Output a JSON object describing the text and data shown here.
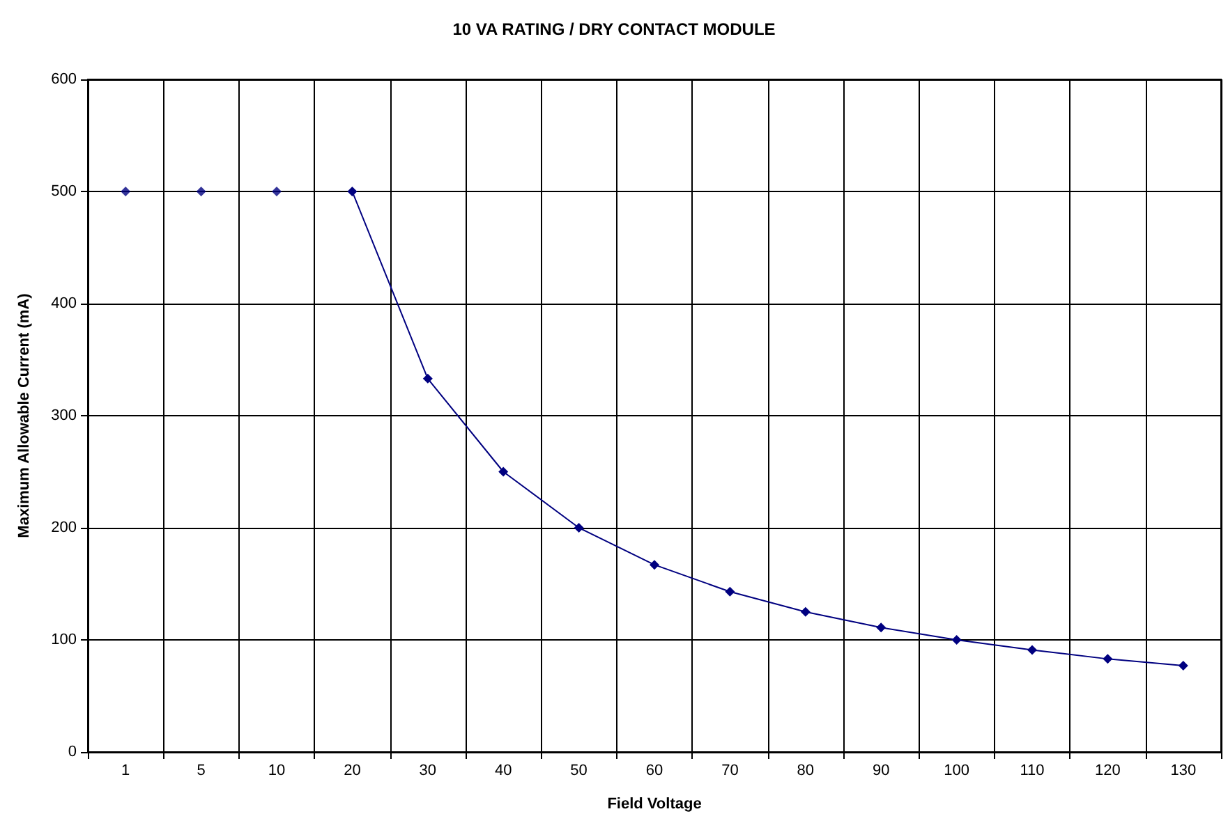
{
  "chart_data": {
    "type": "line",
    "title": "10 VA RATING / DRY CONTACT MODULE",
    "xlabel": "Field Voltage",
    "ylabel": "Maximum Allowable Current (mA)",
    "categories": [
      "1",
      "5",
      "10",
      "20",
      "30",
      "40",
      "50",
      "60",
      "70",
      "80",
      "90",
      "100",
      "110",
      "120",
      "130"
    ],
    "series": [
      {
        "type": "scatter",
        "color": "#000080",
        "values": [
          500,
          500,
          500,
          null,
          null,
          null,
          null,
          null,
          null,
          null,
          null,
          null,
          null,
          null,
          null
        ]
      },
      {
        "color": "#000080",
        "values": [
          null,
          null,
          null,
          500,
          333,
          250,
          200,
          167,
          143,
          125,
          111,
          100,
          91,
          83,
          77
        ]
      }
    ],
    "ylim": [
      0,
      600
    ],
    "yticks": [
      0,
      100,
      200,
      300,
      400,
      500,
      600
    ],
    "grid": true,
    "marker": "diamond",
    "line_style": "solid"
  }
}
